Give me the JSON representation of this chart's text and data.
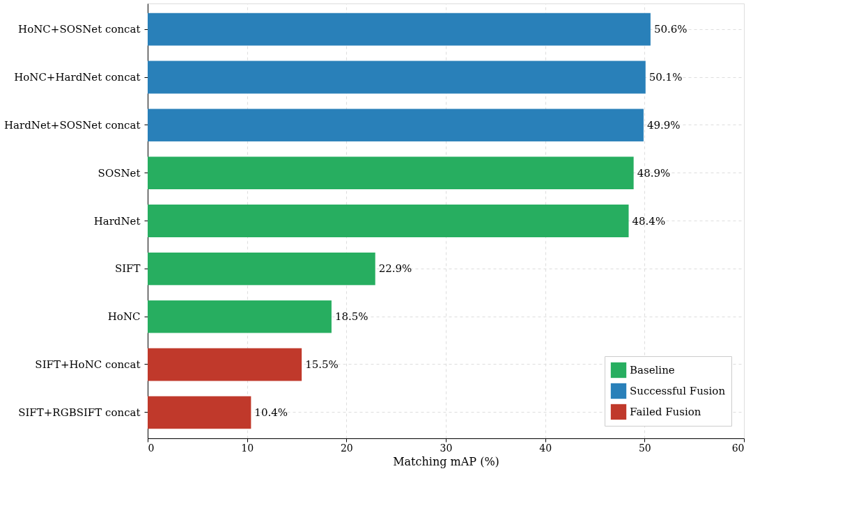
{
  "chart_data": {
    "type": "bar",
    "orientation": "horizontal",
    "xlabel": "Matching mAP (%)",
    "categories": [
      "HoNC+SOSNet concat",
      "HoNC+HardNet concat",
      "HardNet+SOSNet concat",
      "SOSNet",
      "HardNet",
      "SIFT",
      "HoNC",
      "SIFT+HoNC concat",
      "SIFT+RGBSIFT concat"
    ],
    "series": [
      {
        "name": "Baseline",
        "color": "#27ae60",
        "values": [
          null,
          null,
          null,
          48.9,
          48.4,
          22.9,
          18.5,
          null,
          null
        ],
        "value_labels": [
          null,
          null,
          null,
          "48.9%",
          "48.4%",
          "22.9%",
          "18.5%",
          null,
          null
        ]
      },
      {
        "name": "Successful Fusion",
        "color": "#2980b9",
        "values": [
          50.6,
          50.1,
          49.9,
          null,
          null,
          null,
          null,
          null,
          null
        ],
        "value_labels": [
          "50.6%",
          "50.1%",
          "49.9%",
          null,
          null,
          null,
          null,
          null,
          null
        ]
      },
      {
        "name": "Failed Fusion",
        "color": "#c0392b",
        "values": [
          null,
          null,
          null,
          null,
          null,
          null,
          null,
          15.5,
          10.4
        ],
        "value_labels": [
          null,
          null,
          null,
          null,
          null,
          null,
          null,
          "15.5%",
          "10.4%"
        ]
      }
    ],
    "xlim": [
      0,
      60
    ],
    "xticks": [
      0,
      10,
      20,
      30,
      40,
      50,
      60
    ],
    "grid": true,
    "legend": "bottom right"
  }
}
